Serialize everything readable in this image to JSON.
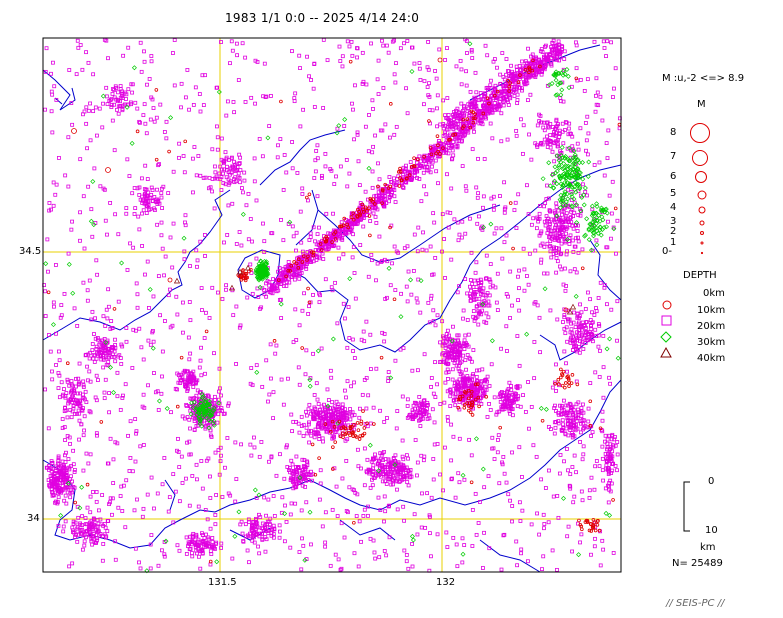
{
  "title": "1983 1/1 0:0 -- 2025 4/14 24:0",
  "axes": {
    "lat_labels": [
      "34.5",
      "34"
    ],
    "lon_labels": [
      "131.5",
      "132"
    ]
  },
  "magnitude_legend": {
    "range_text": "M :u,-2 <=> 8.9",
    "heading": "M",
    "levels": [
      "8",
      "7",
      "6",
      "5",
      "4",
      "3",
      "2",
      "1",
      "0-"
    ]
  },
  "depth_legend": {
    "heading": "DEPTH",
    "entries": [
      {
        "label": "0km",
        "symbol": "circle",
        "color": "#e00000"
      },
      {
        "label": "10km",
        "symbol": "square",
        "color": "#e000e0"
      },
      {
        "label": "20km",
        "symbol": "diamond",
        "color": "#00cc00"
      },
      {
        "label": "30km",
        "symbol": "triangle",
        "color": "#800000"
      },
      {
        "label": "40km",
        "symbol": "none",
        "color": "#000000"
      }
    ]
  },
  "scale_bar": {
    "top_label": "0",
    "bottom_label": "10",
    "unit": "km"
  },
  "count_text": "N= 25489",
  "footer": "// SEIS-PC //",
  "colors": {
    "grid": "#e8d200",
    "coast": "#0000cc",
    "border": "#0000cc",
    "depth0": "#e00000",
    "depth10": "#e000e0",
    "depth20": "#00cc00",
    "depth30": "#800000"
  }
}
